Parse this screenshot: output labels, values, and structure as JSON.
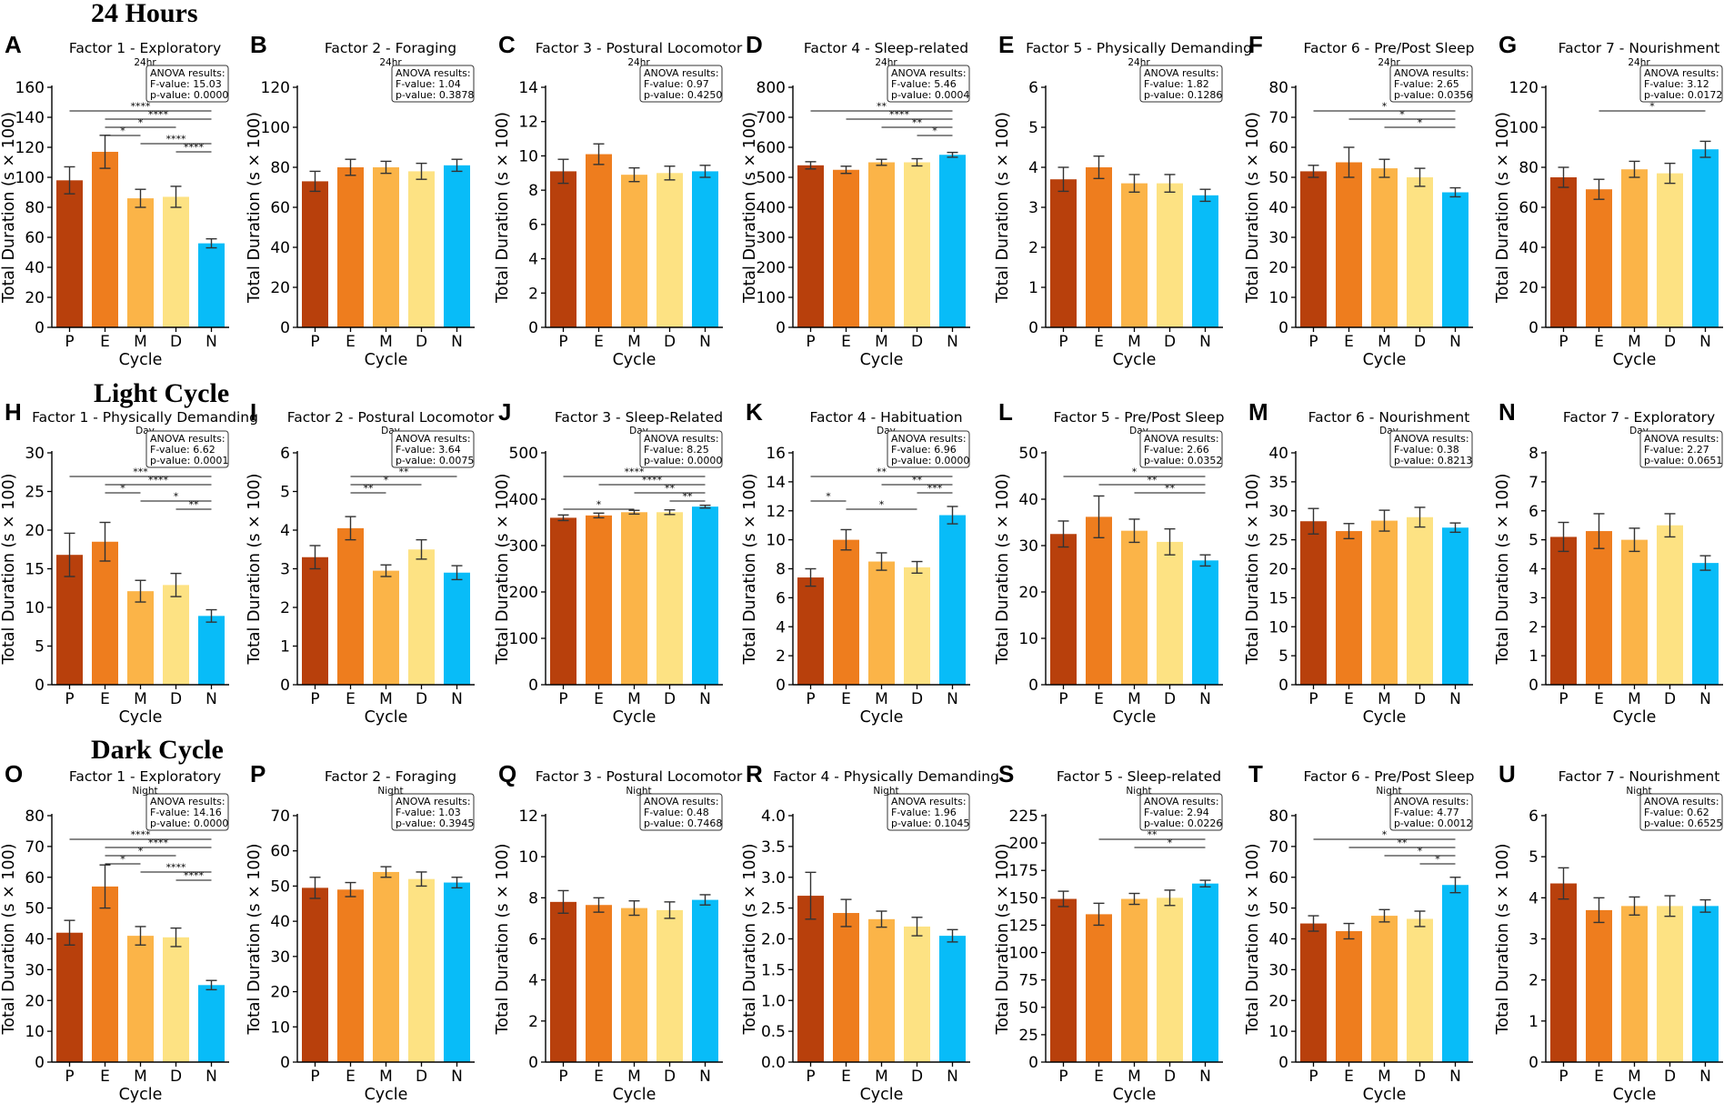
{
  "row_titles": [
    "24 Hours",
    "Light Cycle",
    "Dark Cycle"
  ],
  "colors": [
    "#B8400C",
    "#EE7D1E",
    "#FBB448",
    "#FDE283",
    "#08BCF8"
  ],
  "anova_header": "ANOVA results:",
  "chart_data": [
    {
      "type": "bar",
      "panel": "A",
      "title": "Factor 1 - Exploratory",
      "subtitle": "24hr",
      "categories": [
        "P",
        "E",
        "M",
        "D",
        "N"
      ],
      "values": [
        98,
        117,
        86,
        87,
        56
      ],
      "errors": [
        9,
        11,
        6,
        7,
        3
      ],
      "ylim": [
        0,
        160
      ],
      "yticks": [
        0,
        20,
        40,
        60,
        80,
        100,
        120,
        140,
        160
      ],
      "xlabel": "Cycle",
      "ylabel": "Total Duration (s × 100)",
      "f_value": "F-value: 15.03",
      "p_value": "p-value: 0.0000",
      "significance": [
        {
          "from": 0,
          "to": 4,
          "label": "****"
        },
        {
          "from": 1,
          "to": 4,
          "label": "****"
        },
        {
          "from": 1,
          "to": 3,
          "label": "*"
        },
        {
          "from": 1,
          "to": 2,
          "label": "*"
        },
        {
          "from": 2,
          "to": 4,
          "label": "****"
        },
        {
          "from": 3,
          "to": 4,
          "label": "****"
        }
      ]
    },
    {
      "type": "bar",
      "panel": "B",
      "title": "Factor 2 - Foraging",
      "subtitle": "24hr",
      "categories": [
        "P",
        "E",
        "M",
        "D",
        "N"
      ],
      "values": [
        73,
        80,
        80,
        78,
        81
      ],
      "errors": [
        5,
        4,
        3,
        4,
        3
      ],
      "ylim": [
        0,
        120
      ],
      "yticks": [
        0,
        20,
        40,
        60,
        80,
        100,
        120
      ],
      "xlabel": "Cycle",
      "ylabel": "Total Duration (s × 100)",
      "f_value": "F-value: 1.04",
      "p_value": "p-value: 0.3878",
      "significance": []
    },
    {
      "type": "bar",
      "panel": "C",
      "title": "Factor 3 - Postural Locomotor",
      "subtitle": "24hr",
      "categories": [
        "P",
        "E",
        "M",
        "D",
        "N"
      ],
      "values": [
        9.1,
        10.1,
        8.9,
        9.0,
        9.1
      ],
      "errors": [
        0.7,
        0.6,
        0.4,
        0.4,
        0.35
      ],
      "ylim": [
        0,
        14
      ],
      "yticks": [
        0,
        2,
        4,
        6,
        8,
        10,
        12,
        14
      ],
      "xlabel": "Cycle",
      "ylabel": "Total Duration (s × 100)",
      "f_value": "F-value: 0.97",
      "p_value": "p-value: 0.4250",
      "significance": []
    },
    {
      "type": "bar",
      "panel": "D",
      "title": "Factor 4 - Sleep-related",
      "subtitle": "24hr",
      "categories": [
        "P",
        "E",
        "M",
        "D",
        "N"
      ],
      "values": [
        540,
        525,
        550,
        550,
        575
      ],
      "errors": [
        12,
        12,
        10,
        12,
        8
      ],
      "ylim": [
        0,
        800
      ],
      "yticks": [
        0,
        100,
        200,
        300,
        400,
        500,
        600,
        700,
        800
      ],
      "xlabel": "Cycle",
      "ylabel": "Total Duration (s × 100)",
      "f_value": "F-value: 5.46",
      "p_value": "p-value: 0.0004",
      "significance": [
        {
          "from": 0,
          "to": 4,
          "label": "**"
        },
        {
          "from": 1,
          "to": 4,
          "label": "****"
        },
        {
          "from": 2,
          "to": 4,
          "label": "**"
        },
        {
          "from": 3,
          "to": 4,
          "label": "*"
        }
      ]
    },
    {
      "type": "bar",
      "panel": "E",
      "title": "Factor 5 - Physically Demanding",
      "subtitle": "24hr",
      "categories": [
        "P",
        "E",
        "M",
        "D",
        "N"
      ],
      "values": [
        3.7,
        4.0,
        3.6,
        3.6,
        3.3
      ],
      "errors": [
        0.3,
        0.28,
        0.22,
        0.22,
        0.15
      ],
      "ylim": [
        0,
        6
      ],
      "yticks": [
        0,
        1,
        2,
        3,
        4,
        5,
        6
      ],
      "xlabel": "Cycle",
      "ylabel": "Total Duration (s × 100)",
      "f_value": "F-value: 1.82",
      "p_value": "p-value: 0.1286",
      "significance": []
    },
    {
      "type": "bar",
      "panel": "F",
      "title": "Factor 6 - Pre/Post Sleep",
      "subtitle": "24hr",
      "categories": [
        "P",
        "E",
        "M",
        "D",
        "N"
      ],
      "values": [
        52,
        55,
        53,
        50,
        45
      ],
      "errors": [
        2,
        5,
        3,
        3,
        1.5
      ],
      "ylim": [
        0,
        80
      ],
      "yticks": [
        0,
        10,
        20,
        30,
        40,
        50,
        60,
        70,
        80
      ],
      "xlabel": "Cycle",
      "ylabel": "Total Duration (s × 100)",
      "f_value": "F-value: 2.65",
      "p_value": "p-value: 0.0356",
      "significance": [
        {
          "from": 0,
          "to": 4,
          "label": "*"
        },
        {
          "from": 1,
          "to": 4,
          "label": "*"
        },
        {
          "from": 2,
          "to": 4,
          "label": "*"
        }
      ]
    },
    {
      "type": "bar",
      "panel": "G",
      "title": "Factor 7 - Nourishment",
      "subtitle": "24hr",
      "categories": [
        "P",
        "E",
        "M",
        "D",
        "N"
      ],
      "values": [
        75,
        69,
        79,
        77,
        89
      ],
      "errors": [
        5,
        5,
        4,
        5,
        4
      ],
      "ylim": [
        0,
        120
      ],
      "yticks": [
        0,
        20,
        40,
        60,
        80,
        100,
        120
      ],
      "xlabel": "Cycle",
      "ylabel": "Total Duration (s × 100)",
      "f_value": "F-value: 3.12",
      "p_value": "p-value: 0.0172",
      "significance": [
        {
          "from": 1,
          "to": 4,
          "label": "*"
        }
      ]
    },
    {
      "type": "bar",
      "panel": "H",
      "title": "Factor 1 - Physically Demanding",
      "subtitle": "Day",
      "categories": [
        "P",
        "E",
        "M",
        "D",
        "N"
      ],
      "values": [
        16.8,
        18.5,
        12.1,
        12.9,
        8.9
      ],
      "errors": [
        2.8,
        2.5,
        1.4,
        1.5,
        0.8
      ],
      "ylim": [
        0,
        30
      ],
      "yticks": [
        0,
        5,
        10,
        15,
        20,
        25,
        30
      ],
      "xlabel": "Cycle",
      "ylabel": "Total Duration (s × 100)",
      "f_value": "F-value: 6.62",
      "p_value": "p-value: 0.0001",
      "significance": [
        {
          "from": 0,
          "to": 4,
          "label": "***"
        },
        {
          "from": 1,
          "to": 4,
          "label": "****"
        },
        {
          "from": 1,
          "to": 2,
          "label": "*"
        },
        {
          "from": 2,
          "to": 4,
          "label": "*"
        },
        {
          "from": 3,
          "to": 4,
          "label": "**"
        }
      ]
    },
    {
      "type": "bar",
      "panel": "I",
      "title": "Factor 2 - Postural Locomotor",
      "subtitle": "Day",
      "categories": [
        "P",
        "E",
        "M",
        "D",
        "N"
      ],
      "values": [
        3.3,
        4.05,
        2.95,
        3.5,
        2.9
      ],
      "errors": [
        0.3,
        0.3,
        0.15,
        0.25,
        0.18
      ],
      "ylim": [
        0,
        6
      ],
      "yticks": [
        0,
        1,
        2,
        3,
        4,
        5,
        6
      ],
      "xlabel": "Cycle",
      "ylabel": "Total Duration (s × 100)",
      "f_value": "F-value: 3.64",
      "p_value": "p-value: 0.0075",
      "significance": [
        {
          "from": 1,
          "to": 4,
          "label": "**"
        },
        {
          "from": 1,
          "to": 3,
          "label": "*"
        },
        {
          "from": 1,
          "to": 2,
          "label": "**"
        }
      ]
    },
    {
      "type": "bar",
      "panel": "J",
      "title": "Factor 3 - Sleep-Related",
      "subtitle": "Day",
      "categories": [
        "P",
        "E",
        "M",
        "D",
        "N"
      ],
      "values": [
        360,
        365,
        372,
        372,
        384
      ],
      "errors": [
        6,
        5,
        4,
        5,
        3
      ],
      "ylim": [
        0,
        500
      ],
      "yticks": [
        0,
        100,
        200,
        300,
        400,
        500
      ],
      "xlabel": "Cycle",
      "ylabel": "Total Duration (s × 100)",
      "f_value": "F-value: 8.25",
      "p_value": "p-value: 0.0000",
      "significance": [
        {
          "from": 0,
          "to": 4,
          "label": "****"
        },
        {
          "from": 1,
          "to": 4,
          "label": "****"
        },
        {
          "from": 2,
          "to": 4,
          "label": "**"
        },
        {
          "from": 3,
          "to": 4,
          "label": "**"
        },
        {
          "from": 0,
          "to": 2,
          "label": "*"
        }
      ]
    },
    {
      "type": "bar",
      "panel": "K",
      "title": "Factor 4 - Habituation",
      "subtitle": "Day",
      "categories": [
        "P",
        "E",
        "M",
        "D",
        "N"
      ],
      "values": [
        7.4,
        10.0,
        8.5,
        8.1,
        11.7
      ],
      "errors": [
        0.6,
        0.7,
        0.6,
        0.4,
        0.6
      ],
      "ylim": [
        0,
        16
      ],
      "yticks": [
        0,
        2,
        4,
        6,
        8,
        10,
        12,
        14,
        16
      ],
      "xlabel": "Cycle",
      "ylabel": "Total Duration (s × 100)",
      "f_value": "F-value: 6.96",
      "p_value": "p-value: 0.0000",
      "significance": [
        {
          "from": 0,
          "to": 4,
          "label": "**"
        },
        {
          "from": 2,
          "to": 4,
          "label": "**"
        },
        {
          "from": 3,
          "to": 4,
          "label": "***"
        },
        {
          "from": 0,
          "to": 1,
          "label": "*"
        },
        {
          "from": 1,
          "to": 3,
          "label": "*"
        }
      ]
    },
    {
      "type": "bar",
      "panel": "L",
      "title": "Factor 5 - Pre/Post Sleep",
      "subtitle": "Day",
      "categories": [
        "P",
        "E",
        "M",
        "D",
        "N"
      ],
      "values": [
        32.5,
        36.2,
        33.2,
        30.8,
        26.8
      ],
      "errors": [
        2.8,
        4.5,
        2.5,
        2.8,
        1.2
      ],
      "ylim": [
        0,
        50
      ],
      "yticks": [
        0,
        10,
        20,
        30,
        40,
        50
      ],
      "xlabel": "Cycle",
      "ylabel": "Total Duration (s × 100)",
      "f_value": "F-value: 2.66",
      "p_value": "p-value: 0.0352",
      "significance": [
        {
          "from": 0,
          "to": 4,
          "label": "*"
        },
        {
          "from": 1,
          "to": 4,
          "label": "**"
        },
        {
          "from": 2,
          "to": 4,
          "label": "**"
        }
      ]
    },
    {
      "type": "bar",
      "panel": "M",
      "title": "Factor 6 - Nourishment",
      "subtitle": "Day",
      "categories": [
        "P",
        "E",
        "M",
        "D",
        "N"
      ],
      "values": [
        28.2,
        26.5,
        28.3,
        28.9,
        27.1
      ],
      "errors": [
        2.2,
        1.3,
        1.8,
        1.7,
        0.8
      ],
      "ylim": [
        0,
        40
      ],
      "yticks": [
        0,
        5,
        10,
        15,
        20,
        25,
        30,
        35,
        40
      ],
      "xlabel": "Cycle",
      "ylabel": "Total Duration (s × 100)",
      "f_value": "F-value: 0.38",
      "p_value": "p-value: 0.8213",
      "significance": []
    },
    {
      "type": "bar",
      "panel": "N",
      "title": "Factor 7 - Exploratory",
      "subtitle": "Day",
      "categories": [
        "P",
        "E",
        "M",
        "D",
        "N"
      ],
      "values": [
        5.1,
        5.3,
        5.0,
        5.5,
        4.2
      ],
      "errors": [
        0.5,
        0.6,
        0.4,
        0.4,
        0.25
      ],
      "ylim": [
        0,
        8
      ],
      "yticks": [
        0,
        1,
        2,
        3,
        4,
        5,
        6,
        7,
        8
      ],
      "xlabel": "Cycle",
      "ylabel": "Total Duration (s × 100)",
      "f_value": "F-value: 2.27",
      "p_value": "p-value: 0.0651",
      "significance": []
    },
    {
      "type": "bar",
      "panel": "O",
      "title": "Factor 1 - Exploratory",
      "subtitle": "Night",
      "categories": [
        "P",
        "E",
        "M",
        "D",
        "N"
      ],
      "values": [
        42,
        57,
        41,
        40.5,
        25
      ],
      "errors": [
        4,
        7,
        3,
        3,
        1.5
      ],
      "ylim": [
        0,
        80
      ],
      "yticks": [
        0,
        10,
        20,
        30,
        40,
        50,
        60,
        70,
        80
      ],
      "xlabel": "Cycle",
      "ylabel": "Total Duration (s × 100)",
      "f_value": "F-value: 14.16",
      "p_value": "p-value: 0.0000",
      "significance": [
        {
          "from": 0,
          "to": 4,
          "label": "****"
        },
        {
          "from": 1,
          "to": 4,
          "label": "****"
        },
        {
          "from": 1,
          "to": 3,
          "label": "*"
        },
        {
          "from": 1,
          "to": 2,
          "label": "*"
        },
        {
          "from": 2,
          "to": 4,
          "label": "****"
        },
        {
          "from": 3,
          "to": 4,
          "label": "****"
        }
      ]
    },
    {
      "type": "bar",
      "panel": "P",
      "title": "Factor 2 - Foraging",
      "subtitle": "Night",
      "categories": [
        "P",
        "E",
        "M",
        "D",
        "N"
      ],
      "values": [
        49.5,
        49,
        54,
        52,
        51
      ],
      "errors": [
        3,
        2,
        1.5,
        2,
        1.5
      ],
      "ylim": [
        0,
        70
      ],
      "yticks": [
        0,
        10,
        20,
        30,
        40,
        50,
        60,
        70
      ],
      "xlabel": "Cycle",
      "ylabel": "Total Duration (s × 100)",
      "f_value": "F-value: 1.03",
      "p_value": "p-value: 0.3945",
      "significance": []
    },
    {
      "type": "bar",
      "panel": "Q",
      "title": "Factor 3 - Postural Locomotor",
      "subtitle": "Night",
      "categories": [
        "P",
        "E",
        "M",
        "D",
        "N"
      ],
      "values": [
        7.8,
        7.65,
        7.5,
        7.4,
        7.9
      ],
      "errors": [
        0.55,
        0.35,
        0.35,
        0.4,
        0.25
      ],
      "ylim": [
        0,
        12
      ],
      "yticks": [
        0,
        2,
        4,
        6,
        8,
        10,
        12
      ],
      "xlabel": "Cycle",
      "ylabel": "Total Duration (s × 100)",
      "f_value": "F-value: 0.48",
      "p_value": "p-value: 0.7468",
      "significance": []
    },
    {
      "type": "bar",
      "panel": "R",
      "title": "Factor 4 - Physically Demanding",
      "subtitle": "Night",
      "categories": [
        "P",
        "E",
        "M",
        "D",
        "N"
      ],
      "values": [
        2.7,
        2.42,
        2.32,
        2.2,
        2.05
      ],
      "errors": [
        0.38,
        0.22,
        0.13,
        0.15,
        0.1
      ],
      "ylim": [
        0,
        4.0
      ],
      "yticks": [
        0.0,
        0.5,
        1.0,
        1.5,
        2.0,
        2.5,
        3.0,
        3.5,
        4.0
      ],
      "xlabel": "Cycle",
      "ylabel": "Total Duration (s × 100)",
      "f_value": "F-value: 1.96",
      "p_value": "p-value: 0.1045",
      "significance": []
    },
    {
      "type": "bar",
      "panel": "S",
      "title": "Factor 5 - Sleep-related",
      "subtitle": "Night",
      "categories": [
        "P",
        "E",
        "M",
        "D",
        "N"
      ],
      "values": [
        149,
        135,
        149,
        150,
        163
      ],
      "errors": [
        7,
        10,
        5,
        7,
        3
      ],
      "ylim": [
        0,
        225
      ],
      "yticks": [
        0,
        25,
        50,
        75,
        100,
        125,
        150,
        175,
        200,
        225
      ],
      "xlabel": "Cycle",
      "ylabel": "Total Duration (s × 100)",
      "f_value": "F-value: 2.94",
      "p_value": "p-value: 0.0226",
      "significance": [
        {
          "from": 1,
          "to": 4,
          "label": "**"
        },
        {
          "from": 2,
          "to": 4,
          "label": "*"
        }
      ]
    },
    {
      "type": "bar",
      "panel": "T",
      "title": "Factor 6 - Pre/Post Sleep",
      "subtitle": "Night",
      "categories": [
        "P",
        "E",
        "M",
        "D",
        "N"
      ],
      "values": [
        45,
        42.5,
        47.5,
        46.5,
        57.5
      ],
      "errors": [
        2.5,
        2.5,
        2,
        2.5,
        2.5
      ],
      "ylim": [
        0,
        80
      ],
      "yticks": [
        0,
        10,
        20,
        30,
        40,
        50,
        60,
        70,
        80
      ],
      "xlabel": "Cycle",
      "ylabel": "Total Duration (s × 100)",
      "f_value": "F-value: 4.77",
      "p_value": "p-value: 0.0012",
      "significance": [
        {
          "from": 0,
          "to": 4,
          "label": "*"
        },
        {
          "from": 1,
          "to": 4,
          "label": "**"
        },
        {
          "from": 2,
          "to": 4,
          "label": "*"
        },
        {
          "from": 3,
          "to": 4,
          "label": "*"
        }
      ]
    },
    {
      "type": "bar",
      "panel": "U",
      "title": "Factor 7 - Nourishment",
      "subtitle": "Night",
      "categories": [
        "P",
        "E",
        "M",
        "D",
        "N"
      ],
      "values": [
        4.35,
        3.7,
        3.8,
        3.8,
        3.8
      ],
      "errors": [
        0.38,
        0.3,
        0.22,
        0.25,
        0.15
      ],
      "ylim": [
        0,
        6
      ],
      "yticks": [
        0,
        1,
        2,
        3,
        4,
        5,
        6
      ],
      "xlabel": "Cycle",
      "ylabel": "Total Duration (s × 100)",
      "f_value": "F-value: 0.62",
      "p_value": "p-value: 0.6525",
      "significance": []
    }
  ]
}
